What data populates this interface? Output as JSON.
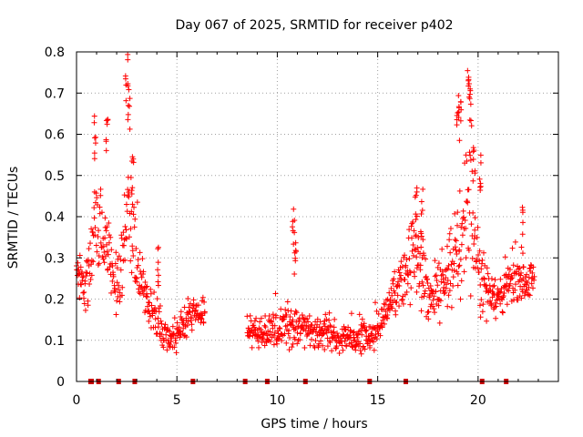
{
  "chart_data": {
    "type": "scatter",
    "title": "Day 067 of 2025, SRMTID for receiver p402",
    "xlabel": "GPS time / hours",
    "ylabel": "SRMTID / TECUs",
    "xlim": [
      0,
      24
    ],
    "ylim": [
      0,
      0.8
    ],
    "xticks": [
      0,
      5,
      10,
      15,
      20
    ],
    "xtick_labels": [
      "0",
      "5",
      "10",
      "15",
      "20"
    ],
    "yticks": [
      0,
      0.1,
      0.2,
      0.3,
      0.4,
      0.5,
      0.6,
      0.7,
      0.8
    ],
    "ytick_labels": [
      "0",
      "0.1",
      "0.2",
      "0.3",
      "0.4",
      "0.5",
      "0.6",
      "0.7",
      "0.8"
    ],
    "grid": true,
    "marker": "+",
    "series_color": "#ff0000",
    "data_gaps_hours": [
      0.7,
      0.75,
      1.1,
      2.1,
      2.9,
      5.8,
      8.4,
      9.5,
      11.4,
      14.6,
      16.4,
      20.2,
      21.4
    ],
    "envelope": {
      "x": [
        0.0,
        0.4,
        0.8,
        1.0,
        1.3,
        1.6,
        2.0,
        2.4,
        2.6,
        2.8,
        3.2,
        3.6,
        4.0,
        4.4,
        4.8,
        5.2,
        5.6,
        6.0,
        6.4,
        8.5,
        9.0,
        9.5,
        10.0,
        10.5,
        11.0,
        11.5,
        12.0,
        12.5,
        13.0,
        13.5,
        14.0,
        14.5,
        15.0,
        15.3,
        15.6,
        16.0,
        16.4,
        16.8,
        17.2,
        17.6,
        18.0,
        18.4,
        18.8,
        19.2,
        19.5,
        19.8,
        20.2,
        20.6,
        21.0,
        21.5,
        22.0,
        22.4,
        22.8
      ],
      "center": [
        0.28,
        0.22,
        0.35,
        0.4,
        0.35,
        0.3,
        0.22,
        0.3,
        0.45,
        0.35,
        0.25,
        0.2,
        0.15,
        0.12,
        0.11,
        0.12,
        0.16,
        0.17,
        0.15,
        0.13,
        0.12,
        0.12,
        0.13,
        0.14,
        0.12,
        0.13,
        0.11,
        0.12,
        0.1,
        0.11,
        0.1,
        0.11,
        0.12,
        0.16,
        0.2,
        0.22,
        0.25,
        0.3,
        0.25,
        0.2,
        0.22,
        0.25,
        0.3,
        0.35,
        0.45,
        0.35,
        0.25,
        0.22,
        0.2,
        0.24,
        0.26,
        0.24,
        0.25
      ],
      "spread": [
        0.08,
        0.07,
        0.12,
        0.14,
        0.12,
        0.1,
        0.08,
        0.12,
        0.2,
        0.15,
        0.08,
        0.07,
        0.06,
        0.05,
        0.04,
        0.05,
        0.04,
        0.04,
        0.04,
        0.04,
        0.05,
        0.05,
        0.06,
        0.07,
        0.05,
        0.05,
        0.04,
        0.05,
        0.04,
        0.04,
        0.04,
        0.05,
        0.05,
        0.06,
        0.07,
        0.08,
        0.12,
        0.14,
        0.1,
        0.08,
        0.08,
        0.1,
        0.14,
        0.2,
        0.22,
        0.15,
        0.1,
        0.07,
        0.06,
        0.07,
        0.07,
        0.06,
        0.05
      ]
    },
    "peaks": [
      {
        "x": 0.9,
        "y": 0.65
      },
      {
        "x": 1.5,
        "y": 0.65
      },
      {
        "x": 2.5,
        "y": 0.8
      },
      {
        "x": 2.6,
        "y": 0.73
      },
      {
        "x": 2.8,
        "y": 0.57
      },
      {
        "x": 4.1,
        "y": 0.34
      },
      {
        "x": 10.8,
        "y": 0.42
      },
      {
        "x": 10.9,
        "y": 0.36
      },
      {
        "x": 16.9,
        "y": 0.5
      },
      {
        "x": 17.2,
        "y": 0.47
      },
      {
        "x": 19.0,
        "y": 0.73
      },
      {
        "x": 19.1,
        "y": 0.69
      },
      {
        "x": 19.5,
        "y": 0.8
      },
      {
        "x": 19.6,
        "y": 0.74
      },
      {
        "x": 19.8,
        "y": 0.58
      },
      {
        "x": 20.1,
        "y": 0.56
      },
      {
        "x": 22.2,
        "y": 0.43
      }
    ]
  }
}
